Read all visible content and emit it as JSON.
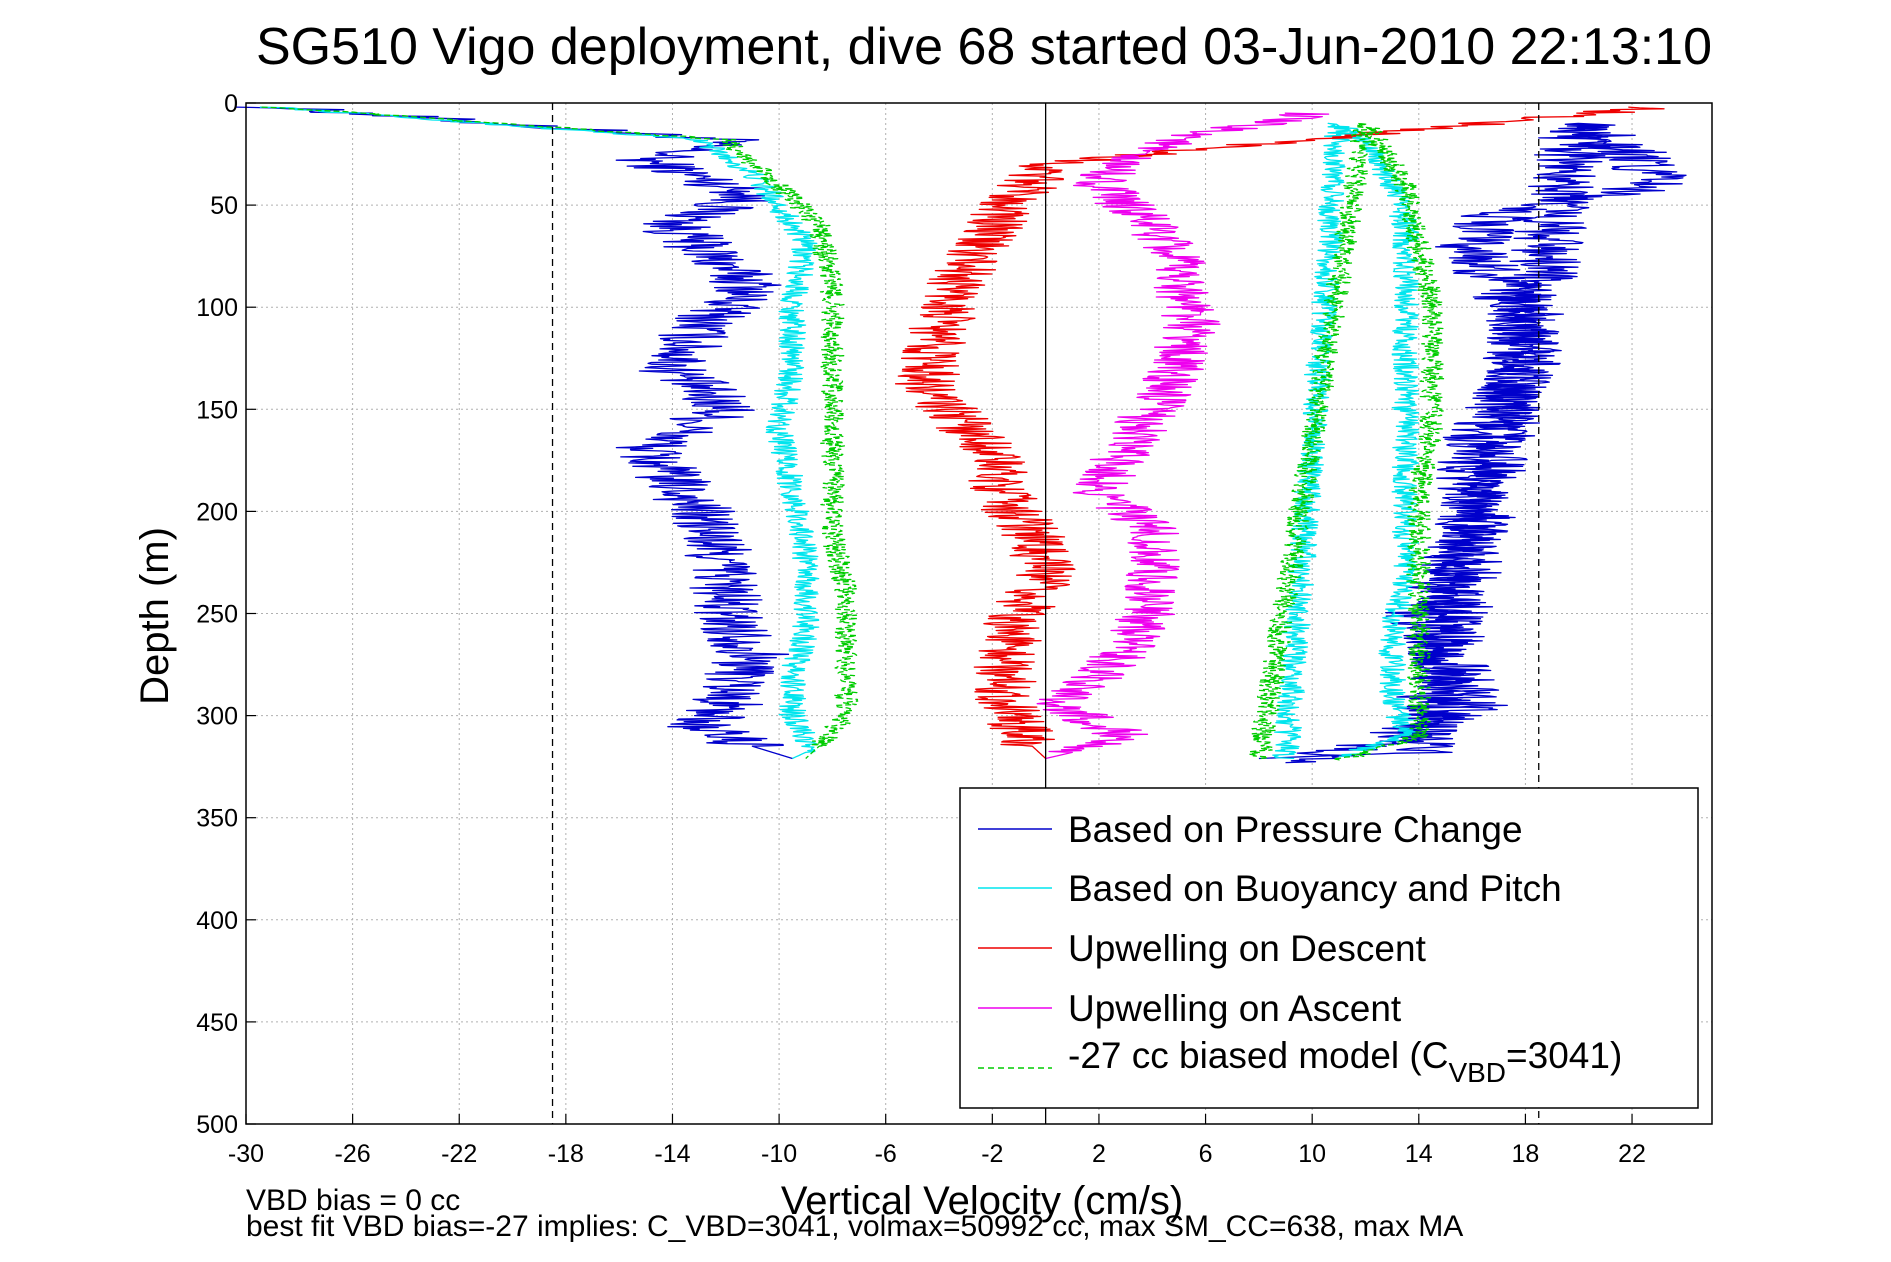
{
  "chart_data": {
    "type": "line",
    "title": "SG510 Vigo deployment, dive 68 started 03-Jun-2010 22:13:10",
    "xlabel": "Vertical Velocity (cm/s)",
    "ylabel": "Depth (m)",
    "xlim": [
      -30,
      25
    ],
    "ylim": [
      0,
      500
    ],
    "y_reversed": true,
    "grid": true,
    "xticks": [
      -30,
      -26,
      -22,
      -18,
      -14,
      -10,
      -6,
      -2,
      2,
      6,
      10,
      14,
      18,
      22
    ],
    "yticks": [
      0,
      50,
      100,
      150,
      200,
      250,
      300,
      350,
      400,
      450,
      500
    ],
    "legend_position": "bottom-right",
    "vertical_lines": [
      {
        "x": -18.5,
        "style": "dashed"
      },
      {
        "x": 0,
        "style": "solid"
      },
      {
        "x": 18.5,
        "style": "dashed"
      }
    ],
    "series": [
      {
        "name": "Based on Pressure Change",
        "color": "#0000cc",
        "style": "solid",
        "x": [
          -29,
          -12,
          -15,
          -11,
          -14,
          -11,
          -13,
          -14,
          -12,
          -15,
          -13,
          -12,
          -12,
          -11,
          -12,
          -13,
          -11,
          -9.5
        ],
        "y": [
          2,
          18,
          28,
          45,
          60,
          90,
          110,
          130,
          150,
          170,
          200,
          230,
          250,
          270,
          295,
          305,
          315,
          321
        ],
        "x2": [
          8,
          14,
          20,
          22,
          23,
          17,
          16,
          17,
          18,
          18,
          17,
          16,
          16,
          16,
          15,
          14,
          15,
          16,
          12,
          9
        ],
        "y2": [
          321,
          318,
          10,
          25,
          40,
          55,
          70,
          90,
          110,
          130,
          150,
          170,
          190,
          210,
          230,
          250,
          270,
          295,
          315,
          323
        ]
      },
      {
        "name": "Based on Buoyancy and Pitch",
        "color": "#00e5ee",
        "style": "solid",
        "x": [
          -29,
          -13,
          -11,
          -10,
          -9,
          -9.5,
          -9.5,
          -10,
          -9.5,
          -9,
          -9,
          -9,
          -9.5,
          -9.5,
          -9,
          -9,
          -9.5
        ],
        "y": [
          2,
          18,
          35,
          50,
          70,
          100,
          130,
          160,
          190,
          220,
          240,
          260,
          280,
          300,
          310,
          318,
          321
        ],
        "x2": [
          9,
          11,
          12,
          13,
          13.5,
          13.5,
          13.5,
          13.5,
          13.5,
          13.5,
          13.5,
          13,
          13,
          13.5,
          11
        ],
        "y2": [
          321,
          10,
          20,
          40,
          60,
          80,
          110,
          140,
          170,
          200,
          230,
          260,
          290,
          310,
          320
        ]
      },
      {
        "name": "Upwelling on Descent",
        "color": "#ee0000",
        "style": "solid",
        "x": [
          23,
          0,
          -1,
          -2,
          -3,
          -4,
          -4.5,
          -2,
          -1.5,
          -0.5,
          0,
          -1,
          -1.5,
          -1.5,
          -1,
          -0.5,
          0
        ],
        "y": [
          2,
          30,
          45,
          60,
          80,
          110,
          140,
          170,
          195,
          210,
          230,
          250,
          270,
          290,
          305,
          315,
          321
        ]
      },
      {
        "name": "Upwelling on Ascent",
        "color": "#ee00ee",
        "style": "solid",
        "x": [
          10,
          6,
          3,
          2,
          4,
          5,
          5.5,
          4.5,
          3,
          2,
          4,
          4,
          3.5,
          2,
          0.5,
          3,
          1,
          0
        ],
        "y": [
          5,
          15,
          25,
          40,
          60,
          80,
          110,
          140,
          170,
          190,
          210,
          240,
          260,
          280,
          295,
          310,
          318,
          321
        ]
      },
      {
        "name": "-27 cc biased model (C_VBD=3041)",
        "color": "#00cc00",
        "style": "dashed",
        "x": [
          -29,
          -12,
          -10,
          -8.5,
          -8,
          -8,
          -8,
          -8,
          -8,
          -7.5,
          -7.5,
          -7.5,
          -8.5,
          -9
        ],
        "y": [
          2,
          18,
          40,
          60,
          90,
          120,
          150,
          180,
          210,
          240,
          270,
          300,
          315,
          321
        ],
        "x2": [
          8,
          12,
          13.5,
          14,
          14.5,
          14.5,
          14.5,
          14,
          14,
          14,
          14,
          14,
          11
        ],
        "y2": [
          321,
          10,
          40,
          70,
          100,
          130,
          160,
          190,
          220,
          250,
          280,
          310,
          322
        ]
      }
    ],
    "legend_subscript_label": "-27 cc biased model (C",
    "legend_subscript": "VBD",
    "legend_subscript_tail": "=3041)",
    "footer_lines": [
      "VBD bias = 0 cc",
      "best fit VBD bias=-27 implies: C_VBD=3041, volmax=50992 cc, max SM_CC=638, max MA"
    ]
  }
}
